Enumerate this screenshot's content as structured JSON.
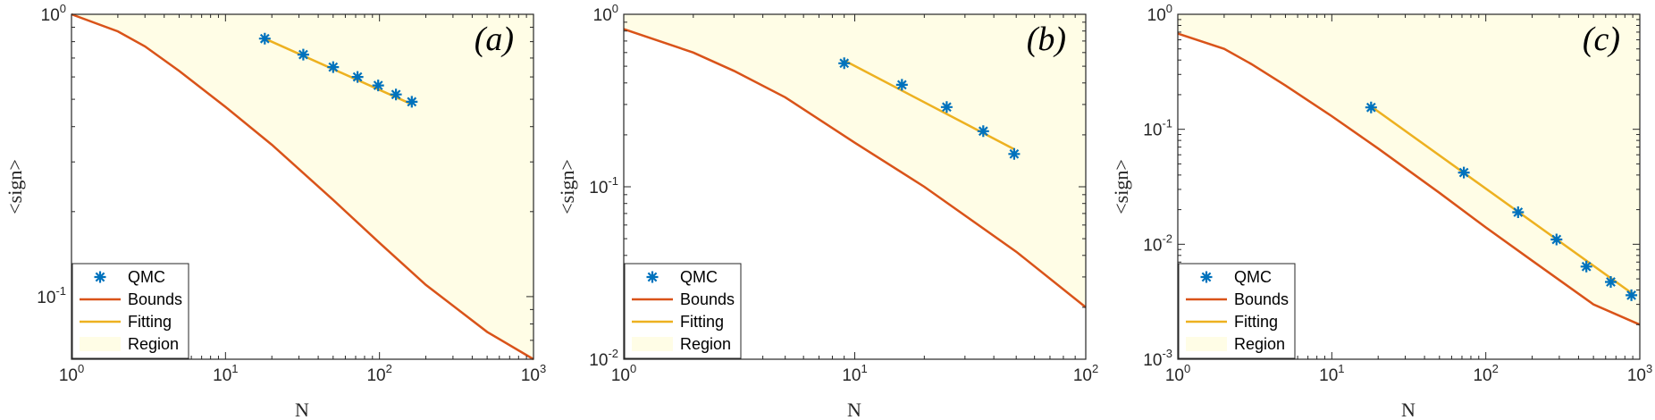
{
  "colors": {
    "region": "#fffde6",
    "bounds": "#d95319",
    "fitting": "#edb120",
    "qmc": "#0072bd",
    "axis": "#262626"
  },
  "legend": {
    "items": [
      {
        "label": "QMC",
        "kind": "marker"
      },
      {
        "label": "Bounds",
        "kind": "bounds"
      },
      {
        "label": "Fitting",
        "kind": "fitting"
      },
      {
        "label": "Region",
        "kind": "region"
      }
    ],
    "placement": "bottom-left"
  },
  "chart_data": [
    {
      "type": "line",
      "panel_label": "(a)",
      "xlabel": "N",
      "ylabel": "<sign>",
      "xscale": "log",
      "yscale": "log",
      "xlim": [
        1,
        1000
      ],
      "ylim": [
        0.06,
        1
      ],
      "xticks": [
        {
          "base": "10",
          "exp": "0"
        },
        {
          "base": "10",
          "exp": "1"
        },
        {
          "base": "10",
          "exp": "2"
        },
        {
          "base": "10",
          "exp": "3"
        }
      ],
      "yticks": [
        {
          "base": "10",
          "exp": "-1",
          "value": 0.1
        },
        {
          "base": "10",
          "exp": "0",
          "value": 1
        }
      ],
      "series": [
        {
          "name": "QMC",
          "style": "marker",
          "x": [
            18,
            32,
            50,
            72,
            98,
            128,
            162
          ],
          "y": [
            0.82,
            0.72,
            0.65,
            0.6,
            0.56,
            0.52,
            0.49
          ]
        },
        {
          "name": "Bounds",
          "style": "bounds",
          "x": [
            1,
            2,
            3,
            5,
            10,
            20,
            50,
            100,
            200,
            500,
            1000
          ],
          "y": [
            1.0,
            0.87,
            0.77,
            0.63,
            0.47,
            0.345,
            0.22,
            0.155,
            0.11,
            0.075,
            0.06
          ]
        },
        {
          "name": "Fitting",
          "style": "fitting",
          "x": [
            18,
            162
          ],
          "y": [
            0.82,
            0.48
          ]
        }
      ]
    },
    {
      "type": "line",
      "panel_label": "(b)",
      "xlabel": "N",
      "ylabel": "<sign>",
      "xscale": "log",
      "yscale": "log",
      "xlim": [
        1,
        100
      ],
      "ylim": [
        0.01,
        1
      ],
      "xticks": [
        {
          "base": "10",
          "exp": "0"
        },
        {
          "base": "10",
          "exp": "1"
        },
        {
          "base": "10",
          "exp": "2"
        }
      ],
      "yticks": [
        {
          "base": "10",
          "exp": "-2",
          "value": 0.01
        },
        {
          "base": "10",
          "exp": "-1",
          "value": 0.1
        },
        {
          "base": "10",
          "exp": "0",
          "value": 1
        }
      ],
      "series": [
        {
          "name": "QMC",
          "style": "marker",
          "x": [
            9,
            16,
            25,
            36,
            49
          ],
          "y": [
            0.52,
            0.39,
            0.29,
            0.21,
            0.155
          ]
        },
        {
          "name": "Bounds",
          "style": "bounds",
          "x": [
            1,
            2,
            3,
            5,
            10,
            20,
            50,
            100
          ],
          "y": [
            0.82,
            0.6,
            0.47,
            0.33,
            0.18,
            0.1,
            0.042,
            0.02
          ]
        },
        {
          "name": "Fitting",
          "style": "fitting",
          "x": [
            9,
            49
          ],
          "y": [
            0.54,
            0.165
          ]
        }
      ]
    },
    {
      "type": "line",
      "panel_label": "(c)",
      "xlabel": "N",
      "ylabel": "<sign>",
      "xscale": "log",
      "yscale": "log",
      "xlim": [
        1,
        1000
      ],
      "ylim": [
        0.001,
        1
      ],
      "xticks": [
        {
          "base": "10",
          "exp": "0"
        },
        {
          "base": "10",
          "exp": "1"
        },
        {
          "base": "10",
          "exp": "2"
        },
        {
          "base": "10",
          "exp": "3"
        }
      ],
      "yticks": [
        {
          "base": "10",
          "exp": "-3",
          "value": 0.001
        },
        {
          "base": "10",
          "exp": "-2",
          "value": 0.01
        },
        {
          "base": "10",
          "exp": "-1",
          "value": 0.1
        },
        {
          "base": "10",
          "exp": "0",
          "value": 1
        }
      ],
      "series": [
        {
          "name": "QMC",
          "style": "marker",
          "x": [
            18,
            72,
            162,
            288,
            450,
            648,
            882
          ],
          "y": [
            0.155,
            0.042,
            0.019,
            0.011,
            0.0064,
            0.0047,
            0.0036
          ]
        },
        {
          "name": "Bounds",
          "style": "bounds",
          "x": [
            1,
            2,
            3,
            5,
            10,
            20,
            50,
            100,
            200,
            500,
            1000
          ],
          "y": [
            0.68,
            0.5,
            0.37,
            0.24,
            0.13,
            0.068,
            0.028,
            0.014,
            0.0072,
            0.003,
            0.002
          ]
        },
        {
          "name": "Fitting",
          "style": "fitting",
          "x": [
            18,
            900
          ],
          "y": [
            0.158,
            0.0037
          ]
        }
      ]
    }
  ]
}
